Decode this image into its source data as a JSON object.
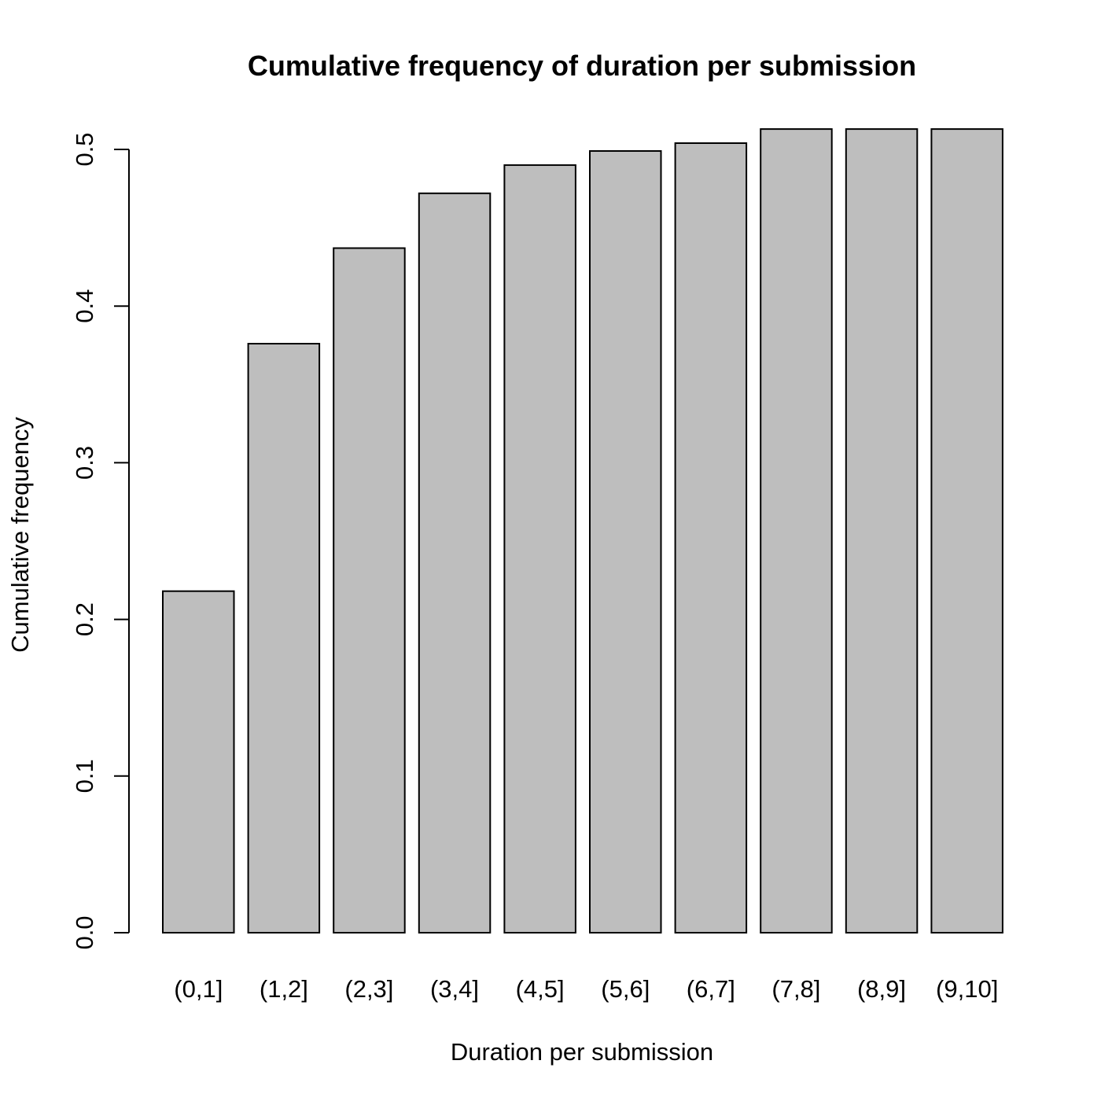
{
  "chart_data": {
    "type": "bar",
    "title": "Cumulative frequency of duration per submission",
    "xlabel": "Duration per submission",
    "ylabel": "Cumulative frequency",
    "categories": [
      "(0,1]",
      "(1,2]",
      "(2,3]",
      "(3,4]",
      "(4,5]",
      "(5,6]",
      "(6,7]",
      "(7,8]",
      "(8,9]",
      "(9,10]"
    ],
    "values": [
      0.218,
      0.376,
      0.437,
      0.472,
      0.49,
      0.499,
      0.504,
      0.513,
      0.513,
      0.513
    ],
    "ylim": [
      0,
      0.5
    ],
    "yticks": [
      0.0,
      0.1,
      0.2,
      0.3,
      0.4,
      0.5
    ],
    "ytick_labels": [
      "0.0",
      "0.1",
      "0.2",
      "0.3",
      "0.4",
      "0.5"
    ],
    "bar_color": "#bebebe",
    "grid": false,
    "legend": "none"
  }
}
